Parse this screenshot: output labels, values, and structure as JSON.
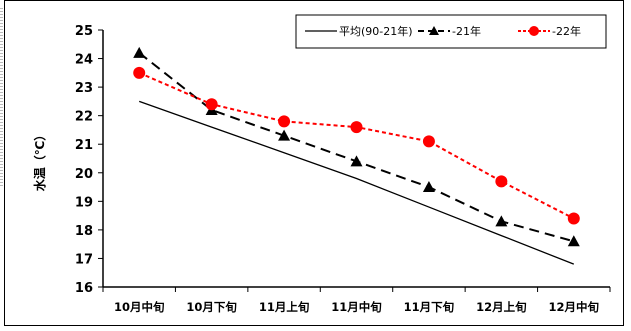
{
  "chart_data": {
    "type": "line",
    "title": "",
    "xlabel": "",
    "ylabel": "水温（℃）",
    "ylim": [
      16,
      25
    ],
    "yticks": [
      "16",
      "17",
      "18",
      "19",
      "20",
      "21",
      "22",
      "23",
      "24",
      "25"
    ],
    "categories": [
      "10月中旬",
      "10月下旬",
      "11月上旬",
      "11月中旬",
      "11月下旬",
      "12月上旬",
      "12月中旬"
    ],
    "grid": false,
    "legend_position": "top-right",
    "series": [
      {
        "name": "平均(90-21年)",
        "values": [
          22.5,
          21.6,
          20.7,
          19.8,
          18.8,
          17.8,
          16.8
        ],
        "color": "#000000",
        "line": "solid",
        "marker": "none"
      },
      {
        "name": "-21年",
        "values": [
          24.2,
          22.2,
          21.3,
          20.4,
          19.5,
          18.3,
          17.6
        ],
        "color": "#000000",
        "line": "dashed",
        "marker": "triangle"
      },
      {
        "name": "-22年",
        "values": [
          23.5,
          22.4,
          21.8,
          21.6,
          21.1,
          19.7,
          18.4
        ],
        "color": "#ff0000",
        "line": "dashed",
        "marker": "circle"
      }
    ]
  }
}
